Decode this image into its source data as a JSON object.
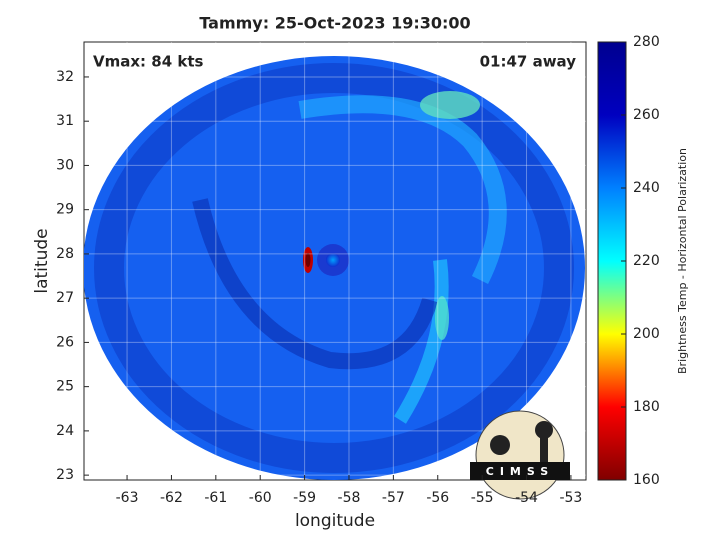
{
  "chart_data": {
    "type": "image",
    "title": "Tammy: 25-Oct-2023 19:30:00",
    "annotations": [
      "Vmax: 84 kts",
      "01:47 away"
    ],
    "x_label": "longitude",
    "y_label": "latitude",
    "xlim": [
      -63.97,
      -52.66
    ],
    "xticks": [
      -63,
      -62,
      -61,
      -60,
      -59,
      -58,
      -57,
      -56,
      -55,
      -54,
      -53
    ],
    "ylim": [
      22.89,
      32.79
    ],
    "yticks": [
      23,
      24,
      25,
      26,
      27,
      28,
      29,
      30,
      31,
      32
    ],
    "grid": true,
    "colorbar": {
      "label": "Brightness Temp - Horizontal Polarization",
      "lim": [
        160,
        280
      ],
      "ticks": [
        160,
        180,
        200,
        220,
        240,
        260,
        280
      ],
      "colormap": [
        "#800000",
        "#ff0000",
        "#ffff00",
        "#00ffff",
        "#0080ff",
        "#0000c0",
        "#00008f"
      ]
    },
    "logo": "CIMSS"
  }
}
